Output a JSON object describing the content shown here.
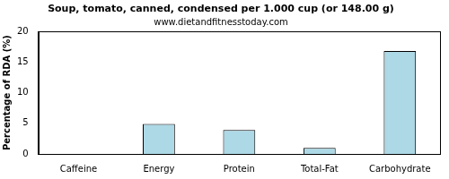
{
  "chart_data": {
    "type": "bar",
    "title": "Soup, tomato, canned, condensed per 1.000 cup (or 148.00 g)",
    "subtitle": "www.dietandfitnesstoday.com",
    "y_label": "Percentage of RDA (%)",
    "categories": [
      "Caffeine",
      "Energy",
      "Protein",
      "Total-Fat",
      "Carbohydrate"
    ],
    "values": [
      0,
      4.9,
      3.9,
      1.0,
      16.8
    ],
    "color": "#add8e6",
    "ylim": [
      0,
      20
    ],
    "yticks": [
      0,
      5,
      10,
      15,
      20
    ],
    "grid": false
  }
}
